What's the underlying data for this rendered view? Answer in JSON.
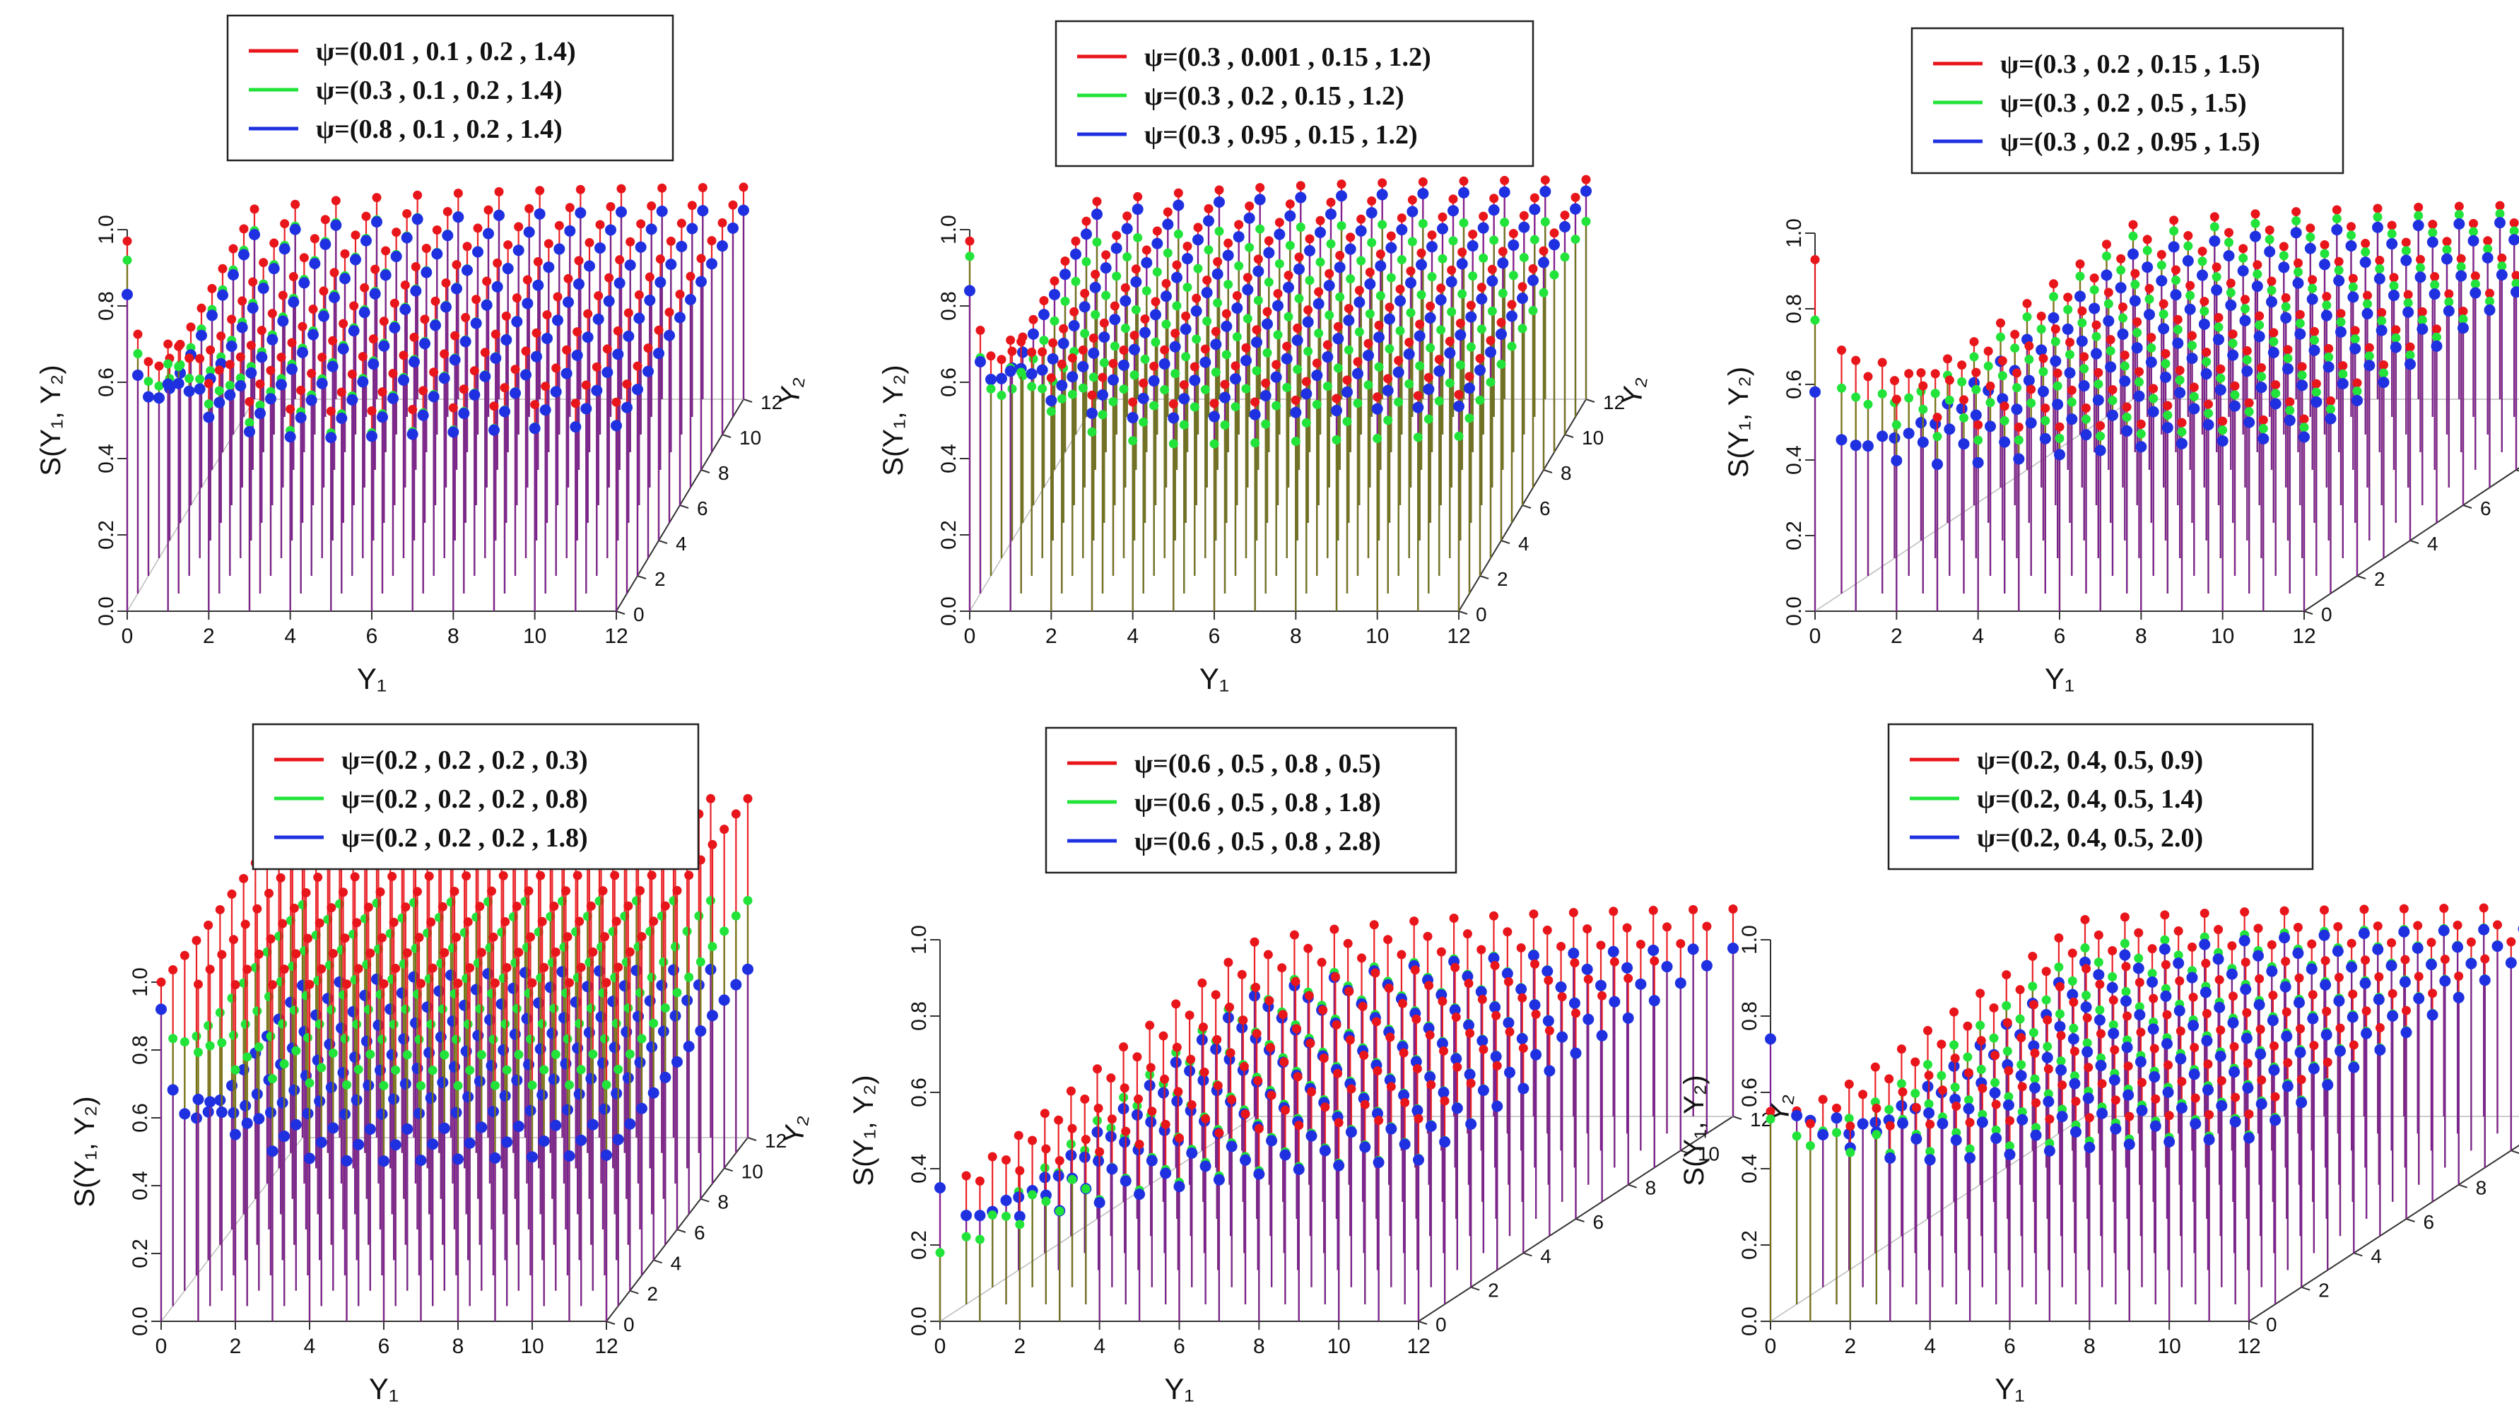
{
  "figure": {
    "ylabel": "S(Y₁, Y₂)",
    "xlabel": "Y₁",
    "zlabel": "Y₂",
    "y_ticks": [
      "0.0",
      "0.2",
      "0.4",
      "0.6",
      "0.8",
      "1.0"
    ],
    "x_ticks": [
      "0",
      "2",
      "4",
      "6",
      "8",
      "10",
      "12"
    ],
    "z_ticks": [
      "0",
      "2",
      "4",
      "6",
      "8",
      "10",
      "12"
    ]
  },
  "colors": {
    "red": "#e8161b",
    "green": "#21e33a",
    "blue": "#1f30e0",
    "stem": "#7a1f9a"
  },
  "chart_data": [
    {
      "type": "3d-stem",
      "legend": [
        "ψ=(0.01 , 0.1 , 0.2 , 1.4)",
        "ψ=(0.3 , 0.1 , 0.2 , 1.4)",
        "ψ=(0.8 , 0.1 , 0.2 , 1.4)"
      ],
      "ylim": [
        0,
        1
      ],
      "series": [
        {
          "values": {
            "origin": 0.97,
            "tail": 0.56,
            "dip": 0.38
          }
        },
        {
          "values": {
            "origin": 0.92,
            "tail": 0.5,
            "dip": 0.33
          }
        },
        {
          "values": {
            "origin": 0.83,
            "tail": 0.5,
            "dip": 0.3
          }
        }
      ]
    },
    {
      "type": "3d-stem",
      "legend": [
        "ψ=(0.3 , 0.001 , 0.15 , 1.2)",
        "ψ=(0.3 , 0.2 , 0.15 , 1.2)",
        "ψ=(0.3 , 0.95 , 0.15 , 1.2)"
      ],
      "ylim": [
        0,
        1
      ],
      "series": [
        {
          "values": {
            "origin": 0.97,
            "tail": 0.58,
            "dip": 0.4
          }
        },
        {
          "values": {
            "origin": 0.93,
            "tail": 0.47,
            "dip": 0.3
          }
        },
        {
          "values": {
            "origin": 0.84,
            "tail": 0.55,
            "dip": 0.36
          }
        }
      ]
    },
    {
      "type": "3d-stem",
      "legend": [
        "ψ=(0.3 , 0.2 , 0.15 , 1.5)",
        "ψ=(0.3 , 0.2 , 0.5 , 1.5)",
        "ψ=(0.3 , 0.2 , 0.95 , 1.5)"
      ],
      "ylim": [
        0,
        1
      ],
      "series": [
        {
          "values": {
            "origin": 0.93,
            "tail": 0.52,
            "dip": 0.35
          }
        },
        {
          "values": {
            "origin": 0.77,
            "tail": 0.5,
            "dip": 0.3
          }
        },
        {
          "values": {
            "origin": 0.58,
            "tail": 0.48,
            "dip": 0.2
          }
        }
      ]
    },
    {
      "type": "3d-stem",
      "legend": [
        "ψ=(0.2 , 0.2 , 0.2 , 0.3)",
        "ψ=(0.2 , 0.2 , 0.2 , 0.8)",
        "ψ=(0.2 , 0.2 , 0.2 , 1.8)"
      ],
      "ylim": [
        0,
        1
      ],
      "series": [
        {
          "values": {
            "origin": 1.0,
            "tail": 1.0,
            "dip": 0.98
          }
        },
        {
          "values": {
            "origin": 0.92,
            "tail": 0.7,
            "dip": 0.66
          }
        },
        {
          "values": {
            "origin": 0.92,
            "tail": 0.5,
            "dip": 0.35
          }
        }
      ]
    },
    {
      "type": "3d-stem",
      "legend": [
        "ψ=(0.6 , 0.5 , 0.8 , 0.5)",
        "ψ=(0.6 , 0.5 , 0.8 , 1.8)",
        "ψ=(0.6 , 0.5 , 0.8 , 2.8)"
      ],
      "ylim": [
        0,
        1
      ],
      "series": [
        {
          "values": {
            "origin": 0.35,
            "tail": 0.55,
            "dip": 0.28
          }
        },
        {
          "values": {
            "origin": 0.18,
            "tail": 0.45,
            "dip": 0.12
          }
        },
        {
          "values": {
            "origin": 0.35,
            "tail": 0.45,
            "dip": 0.06
          }
        }
      ]
    },
    {
      "type": "3d-stem",
      "legend": [
        "ψ=(0.2, 0.4, 0.5, 0.9)",
        "ψ=(0.2, 0.4, 0.5, 1.4)",
        "ψ=(0.2, 0.4, 0.5, 2.0)"
      ],
      "ylim": [
        0,
        1
      ],
      "series": [
        {
          "values": {
            "origin": 0.55,
            "tail": 0.55,
            "dip": 0.45
          }
        },
        {
          "values": {
            "origin": 0.53,
            "tail": 0.5,
            "dip": 0.33
          }
        },
        {
          "values": {
            "origin": 0.74,
            "tail": 0.5,
            "dip": 0.22
          }
        }
      ]
    }
  ]
}
